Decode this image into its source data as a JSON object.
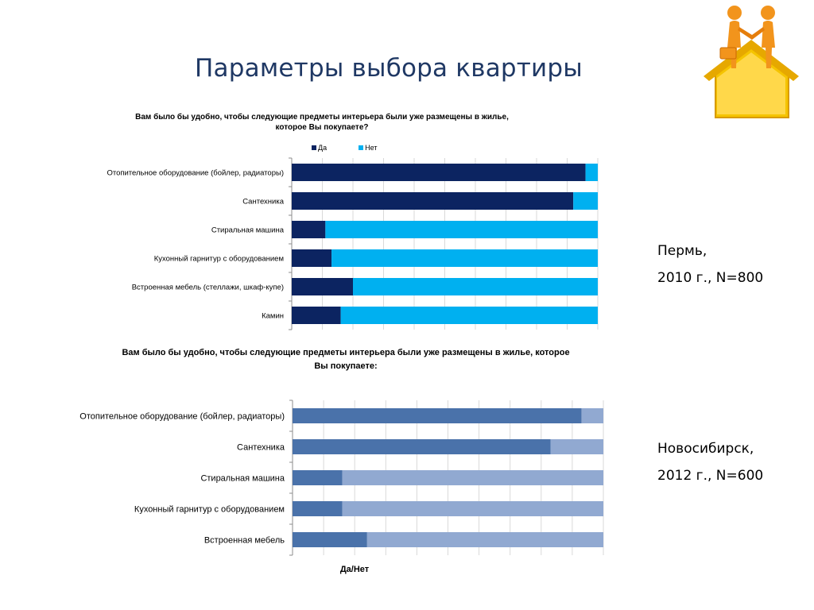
{
  "slide": {
    "title": "Параметры выбора квартиры"
  },
  "logo": {
    "icon": "handshake-house-icon",
    "colors": {
      "figure": "#f2941c",
      "house": "#f5c400"
    }
  },
  "perm": {
    "city": "Пермь,",
    "details": "2010 г., N=800"
  },
  "novosibirsk": {
    "city": "Новосибирск,",
    "details": "2012 г., N=600"
  },
  "chart_data": [
    {
      "type": "bar",
      "orientation": "horizontal",
      "stacked": true,
      "title": "Вам было бы удобно, чтобы следующие предметы интерьера были уже размещены в жилье, которое Вы покупаете?",
      "title_lines": [
        "Вам было бы удобно, чтобы следующие предметы интерьера были уже размещены в жилье,",
        "которое Вы покупаете?"
      ],
      "categories": [
        "Отопительное оборудование (бойлер, радиаторы)",
        "Сантехника",
        "Стиральная машина",
        "Кухонный гарнитур с оборудованием",
        "Встроенная мебель (стеллажи, шкаф-купе)",
        "Камин"
      ],
      "series": [
        {
          "name": "Да",
          "color": "#0c2461",
          "values": [
            96,
            92,
            11,
            13,
            20,
            16
          ]
        },
        {
          "name": "Нет",
          "color": "#00b0f0",
          "values": [
            4,
            8,
            89,
            87,
            80,
            84
          ]
        }
      ],
      "xlim": [
        0,
        100
      ],
      "grid": true,
      "legend": "top"
    },
    {
      "type": "bar",
      "orientation": "horizontal",
      "stacked": true,
      "title": "Вам было бы удобно, чтобы следующие предметы интерьера были уже размещены в жилье, которое Вы покупаете:",
      "title_lines": [
        "Вам было бы удобно, чтобы следующие предметы интерьера были уже размещены в жилье, которое",
        "Вы покупаете:"
      ],
      "xlabel": "Да/Нет",
      "categories": [
        "Отопительное оборудование (бойлер, радиаторы)",
        "Сантехника",
        "Стиральная машина",
        "Кухонный гарнитур с оборудованием",
        "Встроенная мебель"
      ],
      "series": [
        {
          "color": "#4a72aa",
          "values": [
            93,
            83,
            16,
            16,
            24
          ]
        },
        {
          "color": "#91a9d1",
          "values": [
            7,
            17,
            84,
            84,
            76
          ]
        }
      ],
      "xlim": [
        0,
        100
      ],
      "grid": true,
      "legend": "none"
    }
  ]
}
